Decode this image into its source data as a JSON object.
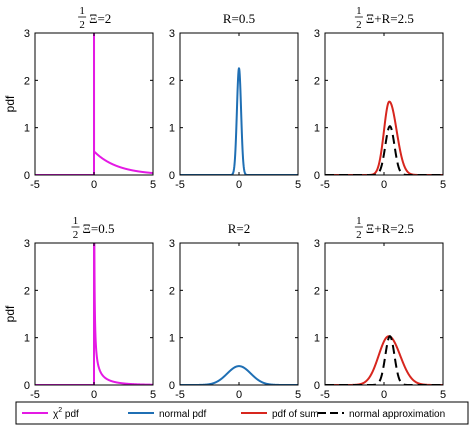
{
  "colors": {
    "chi2": "#e41ae4",
    "normal": "#1f6fb4",
    "sum": "#d7261e",
    "approx": "#000000"
  },
  "legend": {
    "chi2_label": "χ",
    "chi2_sup": "2",
    "chi2_suffix": " pdf",
    "normal_label": "normal pdf",
    "sum_label": "pdf of sum",
    "approx_label": "normal approximation"
  },
  "chart_data": [
    {
      "type": "line",
      "panel": "top-left",
      "title_frac_num": "1",
      "title_frac_den": "2",
      "title": "Ξ=2",
      "ylabel": "pdf",
      "xlim": [
        -5,
        5
      ],
      "ylim": [
        0,
        3
      ],
      "xticks": [
        "-5",
        "0",
        "5"
      ],
      "yticks": [
        "0",
        "1",
        "2",
        "3"
      ],
      "series": [
        {
          "kind": "chi2",
          "color_key": "chi2",
          "nu": 2
        }
      ]
    },
    {
      "type": "line",
      "panel": "top-middle",
      "title": "R=0.5",
      "xlim": [
        -5,
        5
      ],
      "ylim": [
        0,
        3
      ],
      "xticks": [
        "-5",
        "0",
        "5"
      ],
      "yticks": [
        "0",
        "1",
        "2",
        "3"
      ],
      "series": [
        {
          "kind": "normal",
          "color_key": "normal",
          "mean": 0,
          "sd": 0.177
        }
      ]
    },
    {
      "type": "line",
      "panel": "top-right",
      "title_frac_num": "1",
      "title_frac_den": "2",
      "title": "Ξ+R=2.5",
      "xlim": [
        -5,
        5
      ],
      "ylim": [
        0,
        3
      ],
      "xticks": [
        "-5",
        "0",
        "5"
      ],
      "yticks": [
        "0",
        "1",
        "2",
        "3"
      ],
      "series": [
        {
          "kind": "sum",
          "color_key": "sum",
          "peak": 1.55,
          "mode": 0.45,
          "sd_left": 0.45,
          "sd_right": 0.62
        },
        {
          "kind": "normal",
          "color_key": "approx",
          "dashed": true,
          "mean": 0.5,
          "sd": 0.387
        }
      ]
    },
    {
      "type": "line",
      "panel": "bottom-left",
      "title_frac_num": "1",
      "title_frac_den": "2",
      "title": "Ξ=0.5",
      "ylabel": "pdf",
      "xlim": [
        -5,
        5
      ],
      "ylim": [
        0,
        3
      ],
      "xticks": [
        "-5",
        "0",
        "5"
      ],
      "yticks": [
        "0",
        "1",
        "2",
        "3"
      ],
      "series": [
        {
          "kind": "chi2",
          "color_key": "chi2",
          "nu": 0.5
        }
      ]
    },
    {
      "type": "line",
      "panel": "bottom-middle",
      "title": "R=2",
      "xlim": [
        -5,
        5
      ],
      "ylim": [
        0,
        3
      ],
      "xticks": [
        "-5",
        "0",
        "5"
      ],
      "yticks": [
        "0",
        "1",
        "2",
        "3"
      ],
      "series": [
        {
          "kind": "normal",
          "color_key": "normal",
          "mean": 0,
          "sd": 1.0
        }
      ]
    },
    {
      "type": "line",
      "panel": "bottom-right",
      "title_frac_num": "1",
      "title_frac_den": "2",
      "title": "Ξ+R=2.5",
      "xlim": [
        -5,
        5
      ],
      "ylim": [
        0,
        3
      ],
      "xticks": [
        "-5",
        "0",
        "5"
      ],
      "yticks": [
        "0",
        "1",
        "2",
        "3"
      ],
      "series": [
        {
          "kind": "sum",
          "color_key": "sum",
          "peak": 1.03,
          "mode": 0.4,
          "sd_left": 0.85,
          "sd_right": 0.97
        },
        {
          "kind": "normal",
          "color_key": "approx",
          "dashed": true,
          "mean": 0.5,
          "sd": 0.387
        }
      ]
    }
  ]
}
